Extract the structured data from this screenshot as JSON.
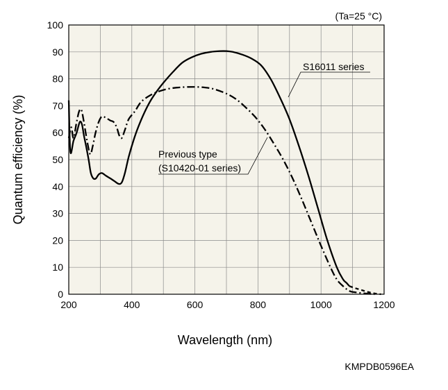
{
  "chart_data": {
    "type": "line",
    "condition": "(Ta=25 °C)",
    "xlabel": "Wavelength (nm)",
    "ylabel": "Quantum efficiency (%)",
    "xlim": [
      200,
      1200
    ],
    "ylim": [
      0,
      100
    ],
    "x_ticks": [
      200,
      400,
      600,
      800,
      1000,
      1200
    ],
    "y_ticks": [
      0,
      10,
      20,
      30,
      40,
      50,
      60,
      70,
      80,
      90,
      100
    ],
    "grid": true,
    "background": "#f5f3ea",
    "series": [
      {
        "name": "S16011 series",
        "style": "solid",
        "points": [
          [
            200,
            72
          ],
          [
            205,
            53
          ],
          [
            215,
            57
          ],
          [
            225,
            60
          ],
          [
            235,
            64
          ],
          [
            242,
            63
          ],
          [
            248,
            59
          ],
          [
            255,
            55
          ],
          [
            263,
            50
          ],
          [
            270,
            45
          ],
          [
            278,
            43
          ],
          [
            286,
            43
          ],
          [
            295,
            44.5
          ],
          [
            305,
            45
          ],
          [
            318,
            44
          ],
          [
            332,
            43
          ],
          [
            345,
            42
          ],
          [
            358,
            41
          ],
          [
            368,
            41.5
          ],
          [
            378,
            45
          ],
          [
            390,
            51
          ],
          [
            405,
            57
          ],
          [
            420,
            62
          ],
          [
            440,
            67.5
          ],
          [
            460,
            72
          ],
          [
            480,
            75.5
          ],
          [
            500,
            78.5
          ],
          [
            530,
            82.5
          ],
          [
            560,
            86
          ],
          [
            590,
            88
          ],
          [
            620,
            89.3
          ],
          [
            650,
            90
          ],
          [
            680,
            90.3
          ],
          [
            700,
            90.3
          ],
          [
            720,
            90
          ],
          [
            750,
            89
          ],
          [
            780,
            87.5
          ],
          [
            810,
            85
          ],
          [
            840,
            80
          ],
          [
            870,
            73
          ],
          [
            900,
            65
          ],
          [
            930,
            55
          ],
          [
            960,
            44
          ],
          [
            990,
            32
          ],
          [
            1020,
            20
          ],
          [
            1050,
            10
          ],
          [
            1070,
            5.5
          ],
          [
            1080,
            4.3
          ],
          [
            1090,
            3
          ]
        ]
      },
      {
        "name": "Previous type (S10420-01 series)",
        "style": "dash-dot",
        "points": [
          [
            200,
            58
          ],
          [
            208,
            62
          ],
          [
            215,
            58
          ],
          [
            225,
            64
          ],
          [
            233,
            68
          ],
          [
            240,
            68.5
          ],
          [
            248,
            64
          ],
          [
            258,
            57
          ],
          [
            268,
            52
          ],
          [
            276,
            55
          ],
          [
            285,
            60
          ],
          [
            295,
            64
          ],
          [
            305,
            66
          ],
          [
            318,
            65.5
          ],
          [
            332,
            64.5
          ],
          [
            342,
            64
          ],
          [
            352,
            62
          ],
          [
            360,
            59
          ],
          [
            368,
            58
          ],
          [
            378,
            61
          ],
          [
            390,
            65
          ],
          [
            410,
            68
          ],
          [
            430,
            71.5
          ],
          [
            460,
            74
          ],
          [
            490,
            75.5
          ],
          [
            520,
            76.4
          ],
          [
            560,
            76.9
          ],
          [
            600,
            77
          ],
          [
            630,
            76.8
          ],
          [
            660,
            76.2
          ],
          [
            700,
            74.5
          ],
          [
            730,
            72.5
          ],
          [
            760,
            69.5
          ],
          [
            790,
            66
          ],
          [
            820,
            61.5
          ],
          [
            850,
            56
          ],
          [
            880,
            50
          ],
          [
            910,
            43
          ],
          [
            940,
            35
          ],
          [
            970,
            26.5
          ],
          [
            1000,
            18
          ],
          [
            1030,
            10
          ],
          [
            1050,
            5.5
          ],
          [
            1070,
            3
          ],
          [
            1090,
            1.2
          ],
          [
            1110,
            0.7
          ],
          [
            1140,
            0.3
          ],
          [
            1170,
            0
          ]
        ]
      }
    ],
    "extrapolation": {
      "style": "dashed",
      "points": [
        [
          1090,
          3
        ],
        [
          1110,
          2.2
        ],
        [
          1130,
          1.5
        ],
        [
          1150,
          0.8
        ],
        [
          1170,
          0.3
        ],
        [
          1190,
          0
        ]
      ]
    },
    "annotations": {
      "s16011_label": "S16011 series",
      "previous_label_line1": "Previous type",
      "previous_label_line2": "(S10420-01 series)"
    },
    "figure_code": "KMPDB0596EA"
  }
}
